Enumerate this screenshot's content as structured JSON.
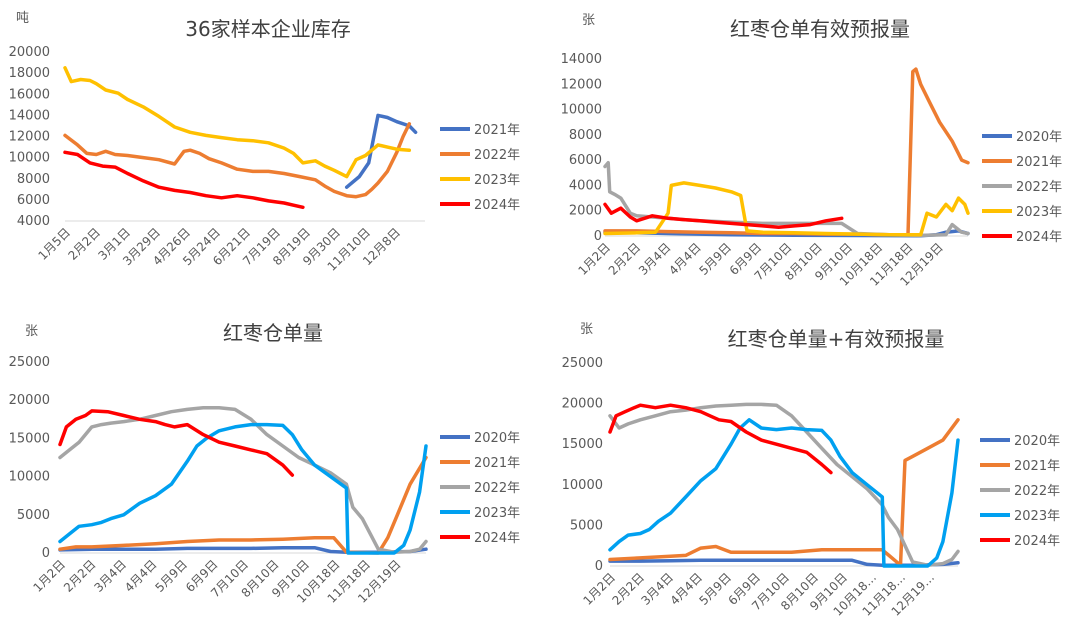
{
  "colors": {
    "s2020": "#4472C4",
    "s2021": "#ED7D31",
    "s2022": "#A5A5A5",
    "s2023": "#FFC000",
    "s2024": "#FF0000",
    "lightblue": "#00A0F0",
    "axis": "#d9d9d9",
    "text": "#595959"
  },
  "chart_data": [
    {
      "type": "line",
      "title": "36家样本企业库存",
      "unit": "吨",
      "ylim": [
        4000,
        20000
      ],
      "yticks": [
        "4000",
        "6000",
        "8000",
        "10000",
        "12000",
        "14000",
        "16000",
        "18000",
        "20000"
      ],
      "categories": [
        "1月5日",
        "2月2日",
        "3月1日",
        "3月29日",
        "4月26日",
        "5月24日",
        "6月21日",
        "7月19日",
        "8月19日",
        "9月30日",
        "11月10日",
        "12月8日"
      ],
      "legend_position": "right",
      "series": [
        {
          "name": "2021年",
          "color_key": "s2020",
          "x": [
            0,
            11.2
          ],
          "x_values": [
            9.0,
            9.4,
            9.7,
            10.0,
            10.3,
            10.6,
            11.0,
            11.2
          ],
          "y_values": [
            7200,
            8200,
            9500,
            14000,
            13800,
            13400,
            13000,
            12400
          ]
        },
        {
          "name": "2022年",
          "color_key": "s2021",
          "x_values": [
            0,
            0.4,
            0.7,
            1,
            1.3,
            1.6,
            2,
            2.5,
            3,
            3.5,
            3.8,
            4,
            4.3,
            4.6,
            5,
            5.5,
            6,
            6.5,
            7,
            7.5,
            8,
            8.3,
            8.6,
            9,
            9.3,
            9.6,
            9.8,
            10,
            10.3,
            10.6,
            10.8,
            11
          ],
          "y_values": [
            12100,
            11200,
            10400,
            10300,
            10600,
            10300,
            10200,
            10000,
            9800,
            9400,
            10600,
            10700,
            10400,
            9900,
            9500,
            8900,
            8700,
            8700,
            8500,
            8200,
            7900,
            7300,
            6800,
            6400,
            6300,
            6500,
            7000,
            7600,
            8700,
            10500,
            12000,
            13200
          ]
        },
        {
          "name": "2023年",
          "color_key": "s2023",
          "x_values": [
            0,
            0.2,
            0.5,
            0.8,
            1,
            1.3,
            1.7,
            2,
            2.5,
            3,
            3.5,
            4,
            4.5,
            5,
            5.5,
            6,
            6.5,
            7,
            7.3,
            7.6,
            8,
            8.3,
            8.6,
            9,
            9.3,
            9.6,
            10,
            10.3,
            10.6,
            11
          ],
          "y_values": [
            18500,
            17200,
            17400,
            17300,
            17000,
            16400,
            16100,
            15500,
            14800,
            13900,
            12900,
            12400,
            12100,
            11900,
            11700,
            11600,
            11400,
            10900,
            10400,
            9500,
            9700,
            9200,
            8800,
            8200,
            9800,
            10200,
            11200,
            11000,
            10800,
            10700
          ]
        },
        {
          "name": "2024年",
          "color_key": "s2024",
          "x_values": [
            0,
            0.4,
            0.8,
            1.2,
            1.6,
            2,
            2.5,
            3,
            3.5,
            4,
            4.5,
            5,
            5.5,
            6,
            6.5,
            7,
            7.3,
            7.6
          ],
          "y_values": [
            10500,
            10300,
            9500,
            9200,
            9100,
            8500,
            7800,
            7200,
            6900,
            6700,
            6400,
            6200,
            6400,
            6200,
            5900,
            5700,
            5500,
            5300
          ]
        }
      ]
    },
    {
      "type": "line",
      "title": "红枣仓单有效预报量",
      "unit": "张",
      "ylim": [
        0,
        14000
      ],
      "yticks": [
        "0",
        "2000",
        "4000",
        "6000",
        "8000",
        "10000",
        "12000",
        "14000"
      ],
      "categories": [
        "1月2日",
        "2月2日",
        "3月4日",
        "4月4日",
        "5月9日",
        "6月9日",
        "7月10日",
        "8月10日",
        "9月10日",
        "10月18日",
        "11月18日",
        "12月19日"
      ],
      "legend_position": "right",
      "series": [
        {
          "name": "2020年",
          "color_key": "s2020",
          "x_values": [
            0,
            1,
            2,
            3,
            4,
            5,
            6,
            7,
            8,
            9,
            10,
            10.5,
            10.8,
            11.2,
            11.5
          ],
          "y_values": [
            300,
            250,
            200,
            150,
            100,
            80,
            60,
            50,
            40,
            30,
            20,
            100,
            300,
            400,
            200
          ]
        },
        {
          "name": "2021年",
          "color_key": "s2021",
          "x_values": [
            0,
            1,
            2,
            3,
            4,
            5,
            6,
            7,
            8,
            9,
            9.6,
            9.75,
            9.85,
            10,
            10.3,
            10.6,
            11,
            11.3,
            11.5
          ],
          "y_values": [
            400,
            400,
            350,
            300,
            250,
            200,
            200,
            150,
            150,
            100,
            100,
            13000,
            13200,
            12000,
            10500,
            9000,
            7500,
            6000,
            5800
          ]
        },
        {
          "name": "2022年",
          "color_key": "s2022",
          "x_values": [
            0,
            0.1,
            0.15,
            0.3,
            0.5,
            0.8,
            1,
            1.5,
            2,
            2.5,
            3,
            4,
            5,
            6,
            7,
            7.5,
            8,
            9,
            10,
            10.8,
            11,
            11.3,
            11.5
          ],
          "y_values": [
            5500,
            5800,
            3500,
            3300,
            3000,
            1800,
            1600,
            1500,
            1400,
            1300,
            1200,
            1100,
            1000,
            1000,
            1000,
            1000,
            200,
            100,
            50,
            100,
            900,
            300,
            200
          ]
        },
        {
          "name": "2023年",
          "color_key": "s2023",
          "x_values": [
            0,
            1,
            1.6,
            2,
            2.1,
            2.5,
            3,
            3.5,
            4,
            4.3,
            4.5,
            5,
            6,
            7,
            8,
            9,
            10,
            10.2,
            10.5,
            10.8,
            11,
            11.2,
            11.4,
            11.5
          ],
          "y_values": [
            200,
            250,
            300,
            1800,
            4000,
            4200,
            4000,
            3800,
            3500,
            3200,
            400,
            300,
            250,
            200,
            150,
            100,
            100,
            1800,
            1500,
            2500,
            2000,
            3000,
            2500,
            1800
          ]
        },
        {
          "name": "2024年",
          "color_key": "s2024",
          "x_values": [
            0,
            0.2,
            0.5,
            0.8,
            1,
            1.5,
            2,
            2.5,
            3,
            3.5,
            4,
            4.5,
            5,
            5.5,
            6,
            6.5,
            7,
            7.5
          ],
          "y_values": [
            2500,
            1800,
            2200,
            1500,
            1200,
            1600,
            1400,
            1300,
            1200,
            1100,
            1000,
            900,
            800,
            700,
            800,
            900,
            1200,
            1400
          ]
        }
      ]
    },
    {
      "type": "line",
      "title": "红枣仓单量",
      "unit": "张",
      "ylim": [
        0,
        25000
      ],
      "yticks": [
        "0",
        "5000",
        "10000",
        "15000",
        "20000",
        "25000"
      ],
      "categories": [
        "1月2日",
        "2月2日",
        "3月4日",
        "4月4日",
        "5月9日",
        "6月9日",
        "7月10日",
        "8月10日",
        "9月10日",
        "10月18日",
        "11月18日",
        "12月19日"
      ],
      "legend_position": "right",
      "series": [
        {
          "name": "2020年",
          "color_key": "s2020",
          "x_values": [
            0,
            1,
            2,
            3,
            4,
            5,
            6,
            7,
            8,
            8.5,
            9,
            10,
            11,
            11.5
          ],
          "y_values": [
            400,
            500,
            500,
            500,
            600,
            600,
            600,
            700,
            700,
            200,
            100,
            100,
            200,
            500
          ]
        },
        {
          "name": "2021年",
          "color_key": "s2021",
          "x_values": [
            0,
            0.5,
            1,
            2,
            3,
            4,
            5,
            6,
            7,
            8,
            8.6,
            9,
            10,
            10.3,
            10.6,
            11,
            11.5
          ],
          "y_values": [
            500,
            800,
            800,
            1000,
            1200,
            1500,
            1700,
            1700,
            1800,
            2000,
            2000,
            100,
            0,
            2000,
            5000,
            9000,
            12500
          ]
        },
        {
          "name": "2022年",
          "color_key": "s2022",
          "x_values": [
            0,
            0.3,
            0.6,
            1,
            1.3,
            1.6,
            2,
            2.5,
            3,
            3.5,
            4,
            4.5,
            5,
            5.5,
            6,
            6.5,
            7,
            7.5,
            8,
            8.5,
            9,
            9.2,
            9.5,
            10,
            10.5,
            11,
            11.3,
            11.5
          ],
          "y_values": [
            12500,
            13500,
            14500,
            16500,
            16800,
            17000,
            17200,
            17500,
            18000,
            18500,
            18800,
            19000,
            19000,
            18800,
            17500,
            15500,
            14000,
            12500,
            11500,
            10500,
            9000,
            6000,
            4500,
            500,
            100,
            200,
            500,
            1500
          ]
        },
        {
          "name": "2023年",
          "color_key": "s2023",
          "blue": true,
          "x_values": [
            0,
            0.3,
            0.6,
            1,
            1.3,
            1.6,
            2,
            2.5,
            3,
            3.5,
            4,
            4.3,
            4.6,
            5,
            5.5,
            6,
            6.5,
            7,
            7.3,
            7.6,
            8,
            8.5,
            9,
            9.05,
            9.5,
            10,
            10.5,
            10.8,
            11,
            11.3,
            11.5
          ],
          "y_values": [
            1500,
            2500,
            3500,
            3700,
            4000,
            4500,
            5000,
            6500,
            7500,
            9000,
            12000,
            14000,
            15000,
            16000,
            16500,
            16800,
            16800,
            16700,
            15500,
            13500,
            11500,
            10000,
            8500,
            0,
            0,
            0,
            0,
            1000,
            3000,
            8000,
            14000
          ]
        },
        {
          "name": "2024年",
          "color_key": "s2024",
          "x_values": [
            0,
            0.2,
            0.5,
            0.8,
            1,
            1.5,
            2,
            2.5,
            3,
            3.3,
            3.6,
            4,
            4.5,
            5,
            5.5,
            6,
            6.5,
            7,
            7.3
          ],
          "y_values": [
            14200,
            16500,
            17500,
            18000,
            18600,
            18500,
            18000,
            17500,
            17200,
            16800,
            16500,
            16800,
            15500,
            14500,
            14000,
            13500,
            13000,
            11500,
            10200
          ]
        }
      ]
    },
    {
      "type": "line",
      "title": "红枣仓单量+有效预报量",
      "unit": "张",
      "ylim": [
        0,
        25000
      ],
      "yticks": [
        "0",
        "5000",
        "10000",
        "15000",
        "20000",
        "25000"
      ],
      "categories": [
        "1月2日",
        "2月2日",
        "3月4日",
        "4月4日",
        "5月9日",
        "6月9日",
        "7月10日",
        "8月10日",
        "9月10日",
        "10月18…",
        "11月18…",
        "12月19…"
      ],
      "legend_position": "right",
      "series": [
        {
          "name": "2020年",
          "color_key": "s2020",
          "x_values": [
            0,
            1,
            2,
            3,
            4,
            5,
            6,
            7,
            8,
            8.5,
            9,
            10,
            11,
            11.5
          ],
          "y_values": [
            600,
            600,
            650,
            700,
            700,
            700,
            700,
            700,
            700,
            200,
            100,
            100,
            200,
            400
          ]
        },
        {
          "name": "2021年",
          "color_key": "s2021",
          "x_values": [
            0,
            1,
            2,
            2.5,
            3,
            3.5,
            4,
            5,
            6,
            7,
            8,
            9,
            9.6,
            9.75,
            10,
            10.5,
            11,
            11.5
          ],
          "y_values": [
            800,
            1000,
            1200,
            1300,
            2200,
            2400,
            1700,
            1700,
            1700,
            2000,
            2000,
            2000,
            100,
            13000,
            13500,
            14500,
            15500,
            18000
          ]
        },
        {
          "name": "2022年",
          "color_key": "s2022",
          "x_values": [
            0,
            0.3,
            0.6,
            1,
            1.5,
            2,
            2.5,
            3,
            3.5,
            4,
            4.5,
            5,
            5.5,
            6,
            6.5,
            7,
            7.5,
            8,
            8.5,
            9,
            9.2,
            9.5,
            10,
            10.5,
            11,
            11.3,
            11.5
          ],
          "y_values": [
            18500,
            17000,
            17500,
            18000,
            18500,
            19000,
            19200,
            19500,
            19700,
            19800,
            19900,
            19900,
            19800,
            18500,
            16500,
            14500,
            12500,
            11000,
            9500,
            7500,
            6000,
            4500,
            500,
            100,
            300,
            800,
            1800
          ]
        },
        {
          "name": "2023年",
          "color_key": "s2023",
          "blue": true,
          "x_values": [
            0,
            0.3,
            0.6,
            1,
            1.3,
            1.6,
            2,
            2.5,
            3,
            3.5,
            4,
            4.3,
            4.6,
            5,
            5.5,
            6,
            6.5,
            7,
            7.3,
            7.6,
            8,
            8.5,
            9,
            9.05,
            9.5,
            10,
            10.5,
            10.8,
            11,
            11.3,
            11.5
          ],
          "y_values": [
            2000,
            3000,
            3800,
            4000,
            4500,
            5500,
            6500,
            8500,
            10500,
            12000,
            15000,
            17000,
            18000,
            17000,
            16800,
            17000,
            16800,
            16700,
            15500,
            13500,
            11500,
            10000,
            8500,
            0,
            0,
            0,
            0,
            1000,
            3000,
            9000,
            15500
          ]
        },
        {
          "name": "2024年",
          "color_key": "s2024",
          "x_values": [
            0,
            0.2,
            0.5,
            0.8,
            1,
            1.5,
            2,
            2.5,
            3,
            3.3,
            3.6,
            4,
            4.5,
            5,
            5.5,
            6,
            6.5,
            7,
            7.3
          ],
          "y_values": [
            16500,
            18500,
            19000,
            19500,
            19800,
            19500,
            19800,
            19500,
            19000,
            18500,
            18000,
            17800,
            16500,
            15500,
            15000,
            14500,
            14000,
            12500,
            11500
          ]
        }
      ]
    }
  ]
}
